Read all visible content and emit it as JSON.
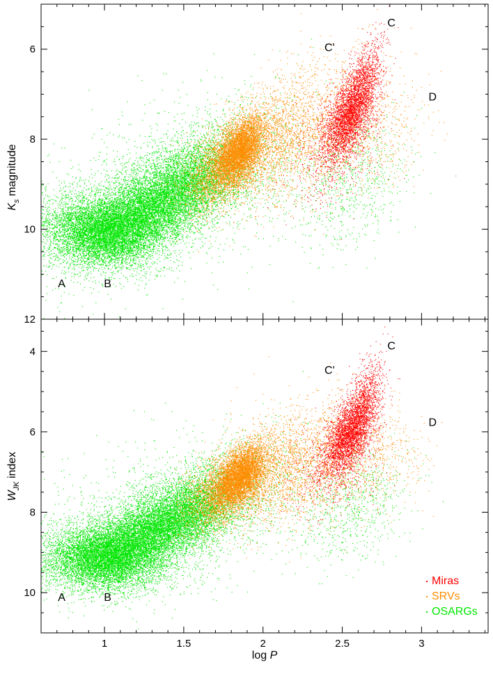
{
  "chart_data": [
    {
      "type": "scatter",
      "panel": "top",
      "xlabel": "log P",
      "ylabel": {
        "main": "K",
        "sub": "s",
        "rest": " magnitude"
      },
      "xlim": [
        0.6,
        3.42
      ],
      "ylim": [
        12.0,
        5.0
      ],
      "y_inverted": true,
      "x_ticks": [
        1,
        1.5,
        2,
        2.5,
        3
      ],
      "x_tick_labels": [],
      "y_ticks": [
        6,
        8,
        10,
        12
      ],
      "y_tick_labels": [
        "6",
        "8",
        "10",
        "12"
      ],
      "grid": false,
      "sequence_labels": [
        {
          "text": "A",
          "x": 0.73,
          "y": 11.2
        },
        {
          "text": "B",
          "x": 1.02,
          "y": 11.2
        },
        {
          "text": "C'",
          "x": 2.42,
          "y": 5.95
        },
        {
          "text": "C",
          "x": 2.81,
          "y": 5.4
        },
        {
          "text": "D",
          "x": 3.07,
          "y": 7.05
        }
      ],
      "series": [
        {
          "name": "OSARGs",
          "color": "#00e600",
          "clusters": [
            {
              "x": [
                0.9,
                1.05
              ],
              "y": [
                10.1,
                10.0
              ],
              "sx": 0.18,
              "sy": 0.38,
              "rho": 0.2,
              "n": 5200
            },
            {
              "x": 1.2,
              "y": 9.7,
              "sx": 0.22,
              "sy": 0.5,
              "rho": -0.55,
              "n": 6500
            },
            {
              "x": 1.5,
              "y": 9.0,
              "sx": 0.2,
              "sy": 0.55,
              "rho": -0.5,
              "n": 4500
            },
            {
              "x": 1.75,
              "y": 8.6,
              "sx": 0.28,
              "sy": 0.8,
              "rho": -0.3,
              "n": 800
            },
            {
              "x": 2.55,
              "y": 9.0,
              "sx": 0.18,
              "sy": 0.7,
              "rho": -0.3,
              "n": 700
            },
            {
              "x": 1.3,
              "y": 9.3,
              "sx": 0.45,
              "sy": 1.0,
              "rho": -0.4,
              "n": 1500
            }
          ]
        },
        {
          "name": "SRVs",
          "color": "#ff8c00",
          "clusters": [
            {
              "x": 1.85,
              "y": 8.25,
              "sx": 0.08,
              "sy": 0.38,
              "rho": -0.5,
              "n": 4500
            },
            {
              "x": 1.72,
              "y": 8.7,
              "sx": 0.12,
              "sy": 0.5,
              "rho": -0.4,
              "n": 1500
            },
            {
              "x": 2.05,
              "y": 8.1,
              "sx": 0.18,
              "sy": 0.7,
              "rho": -0.35,
              "n": 1800
            },
            {
              "x": 2.4,
              "y": 7.6,
              "sx": 0.2,
              "sy": 0.8,
              "rho": -0.3,
              "n": 1100
            },
            {
              "x": 2.75,
              "y": 7.9,
              "sx": 0.15,
              "sy": 0.6,
              "rho": -0.2,
              "n": 350
            }
          ]
        },
        {
          "name": "Miras",
          "color": "#ff0000",
          "clusters": [
            {
              "x": 2.55,
              "y": 7.4,
              "sx": 0.08,
              "sy": 0.5,
              "rho": -0.6,
              "n": 3000
            },
            {
              "x": 2.45,
              "y": 8.2,
              "sx": 0.14,
              "sy": 0.6,
              "rho": -0.3,
              "n": 600
            },
            {
              "x": 2.65,
              "y": 6.5,
              "sx": 0.06,
              "sy": 0.45,
              "rho": -0.5,
              "n": 500
            }
          ]
        }
      ]
    },
    {
      "type": "scatter",
      "panel": "bottom",
      "xlabel": "log P",
      "ylabel": {
        "main": "W",
        "sub": "JK",
        "rest": " index"
      },
      "xlim": [
        0.6,
        3.42
      ],
      "ylim": [
        11.0,
        3.2
      ],
      "y_inverted": true,
      "x_ticks": [
        1,
        1.5,
        2,
        2.5,
        3
      ],
      "x_tick_labels": [
        "1",
        "1.5",
        "2",
        "2.5",
        "3"
      ],
      "y_ticks": [
        4,
        6,
        8,
        10
      ],
      "y_tick_labels": [
        "4",
        "6",
        "8",
        "10"
      ],
      "grid": false,
      "legend": {
        "position": "bottom-right",
        "entries": [
          {
            "label": "Miras",
            "color": "#ff0000"
          },
          {
            "label": "SRVs",
            "color": "#ff8c00"
          },
          {
            "label": "OSARGs",
            "color": "#00e600"
          }
        ]
      },
      "sequence_labels": [
        {
          "text": "A",
          "x": 0.73,
          "y": 10.1
        },
        {
          "text": "B",
          "x": 1.02,
          "y": 10.1
        },
        {
          "text": "C'",
          "x": 2.42,
          "y": 4.45
        },
        {
          "text": "C",
          "x": 2.81,
          "y": 3.85
        },
        {
          "text": "D",
          "x": 3.07,
          "y": 5.75
        }
      ],
      "series": [
        {
          "name": "OSARGs",
          "color": "#00e600",
          "clusters": [
            {
              "x": [
                0.9,
                1.05
              ],
              "y": [
                9.2,
                9.1
              ],
              "sx": 0.18,
              "sy": 0.38,
              "rho": 0.2,
              "n": 5200
            },
            {
              "x": 1.2,
              "y": 8.7,
              "sx": 0.22,
              "sy": 0.5,
              "rho": -0.55,
              "n": 6500
            },
            {
              "x": 1.5,
              "y": 8.0,
              "sx": 0.2,
              "sy": 0.55,
              "rho": -0.5,
              "n": 4500
            },
            {
              "x": 1.75,
              "y": 7.5,
              "sx": 0.28,
              "sy": 0.8,
              "rho": -0.3,
              "n": 800
            },
            {
              "x": 2.55,
              "y": 7.9,
              "sx": 0.18,
              "sy": 0.7,
              "rho": -0.3,
              "n": 700
            },
            {
              "x": 1.3,
              "y": 8.3,
              "sx": 0.45,
              "sy": 1.0,
              "rho": -0.4,
              "n": 1500
            }
          ]
        },
        {
          "name": "SRVs",
          "color": "#ff8c00",
          "clusters": [
            {
              "x": 1.85,
              "y": 7.1,
              "sx": 0.08,
              "sy": 0.38,
              "rho": -0.5,
              "n": 4500
            },
            {
              "x": 1.72,
              "y": 7.5,
              "sx": 0.12,
              "sy": 0.5,
              "rho": -0.4,
              "n": 1500
            },
            {
              "x": 2.05,
              "y": 7.0,
              "sx": 0.18,
              "sy": 0.7,
              "rho": -0.35,
              "n": 1800
            },
            {
              "x": 2.4,
              "y": 6.6,
              "sx": 0.2,
              "sy": 0.8,
              "rho": -0.3,
              "n": 1100
            },
            {
              "x": 2.75,
              "y": 6.7,
              "sx": 0.15,
              "sy": 0.6,
              "rho": -0.2,
              "n": 350
            }
          ]
        },
        {
          "name": "Miras",
          "color": "#ff0000",
          "clusters": [
            {
              "x": 2.55,
              "y": 6.0,
              "sx": 0.08,
              "sy": 0.5,
              "rho": -0.6,
              "n": 3000
            },
            {
              "x": 2.45,
              "y": 6.8,
              "sx": 0.14,
              "sy": 0.6,
              "rho": -0.3,
              "n": 600
            },
            {
              "x": 2.65,
              "y": 5.0,
              "sx": 0.06,
              "sy": 0.45,
              "rho": -0.5,
              "n": 500
            }
          ]
        }
      ]
    }
  ]
}
